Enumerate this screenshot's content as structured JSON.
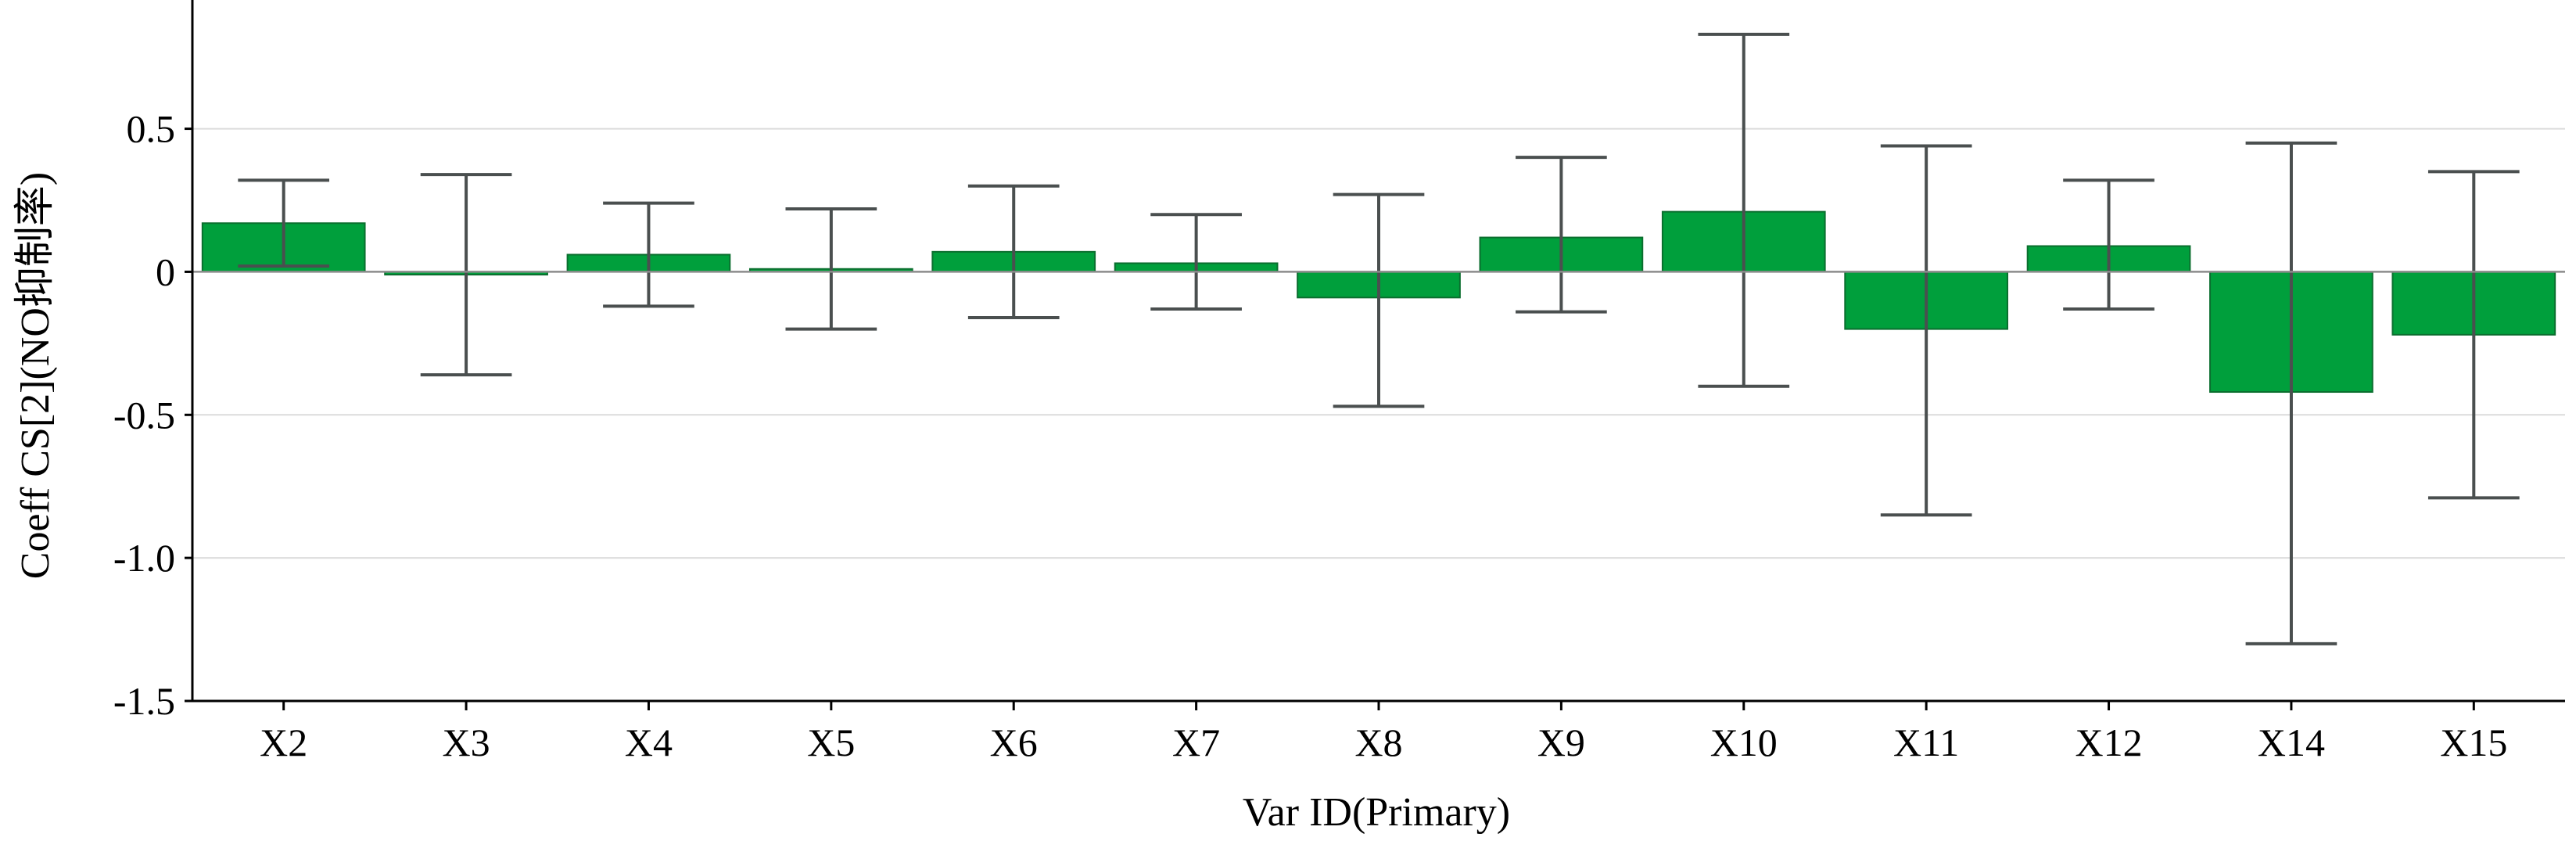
{
  "chart_data": {
    "type": "bar",
    "xlabel": "Var ID(Primary)",
    "ylabel": "Coeff CS[2](NO抑制率)",
    "categories": [
      "X2",
      "X3",
      "X4",
      "X5",
      "X6",
      "X7",
      "X8",
      "X9",
      "X10",
      "X11",
      "X12",
      "X14",
      "X15"
    ],
    "values": [
      0.17,
      -0.01,
      0.06,
      0.01,
      0.07,
      0.03,
      -0.09,
      0.12,
      0.21,
      -0.2,
      0.09,
      -0.42,
      -0.22
    ],
    "error_low": [
      0.02,
      -0.36,
      -0.12,
      -0.2,
      -0.16,
      -0.13,
      -0.47,
      -0.14,
      -0.4,
      -0.85,
      -0.13,
      -1.3,
      -0.79
    ],
    "error_high": [
      0.32,
      0.34,
      0.24,
      0.22,
      0.3,
      0.2,
      0.27,
      0.4,
      0.83,
      0.44,
      0.32,
      0.45,
      0.35
    ],
    "ylim": [
      -1.5,
      0.95
    ],
    "yticks": [
      "-1.5",
      "-1.0",
      "-0.5",
      "0",
      "0.5"
    ],
    "grid": true,
    "colors": {
      "bar": "#009f3c",
      "bar_edge": "#0a6e2e",
      "error_bar": "#4a4f4f",
      "grid": "#dcdcdc",
      "axis": "#000000"
    }
  }
}
